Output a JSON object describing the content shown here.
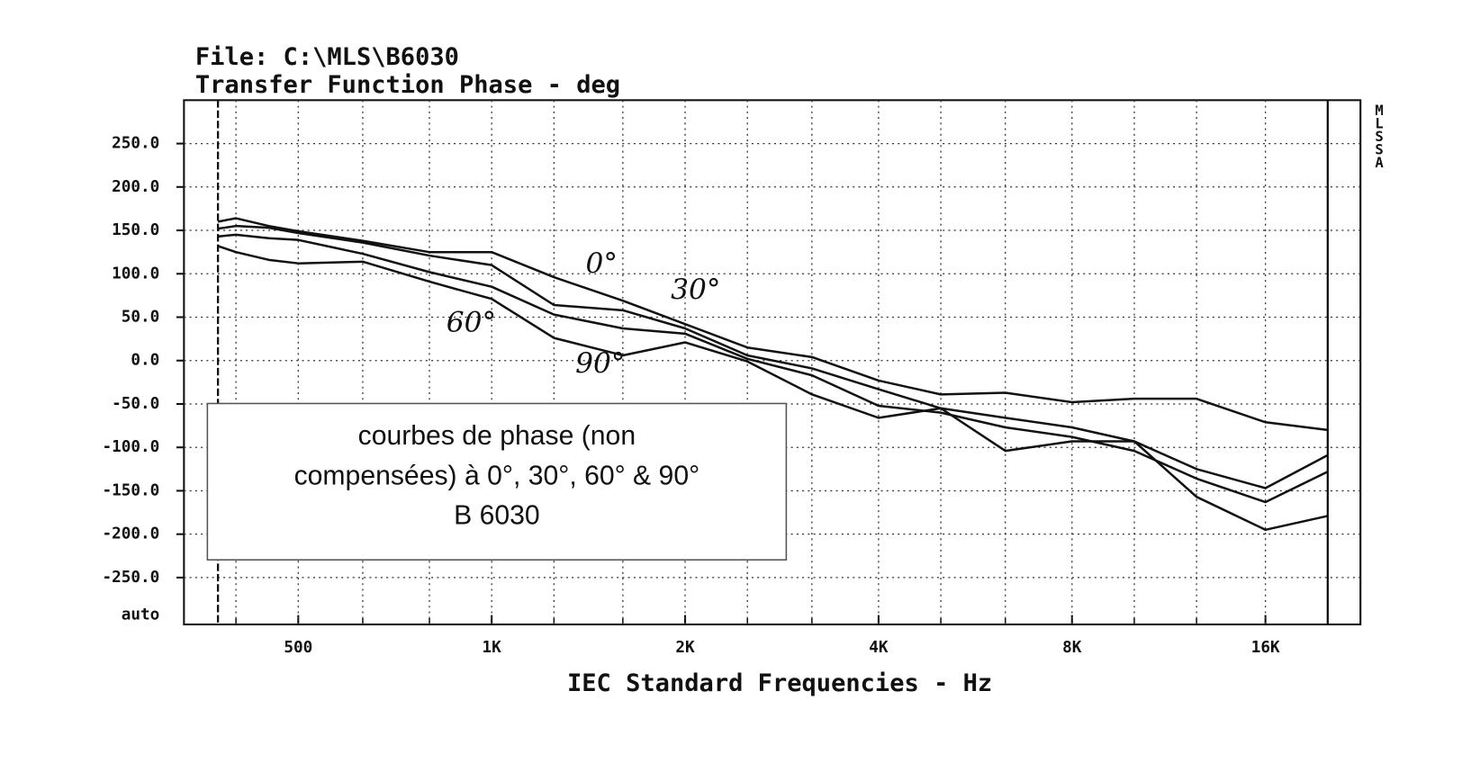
{
  "chart_data": {
    "type": "line",
    "title": "File: C:\\MLS\\B6030",
    "subtitle": "Transfer Function Phase - deg",
    "x_label": "IEC Standard Frequencies - Hz",
    "side_label": "MLSSA",
    "y_auto_label": "auto",
    "log_x": true,
    "grid": true,
    "xlim": [
      332,
      22490
    ],
    "ylim": [
      -304,
      300
    ],
    "xticks": [
      {
        "value": 500,
        "label": "500"
      },
      {
        "value": 1000,
        "label": "1K"
      },
      {
        "value": 2000,
        "label": "2K"
      },
      {
        "value": 4000,
        "label": "4K"
      },
      {
        "value": 8000,
        "label": "8K"
      },
      {
        "value": 16000,
        "label": "16K"
      }
    ],
    "xgrid": [
      400,
      630,
      800,
      1250,
      1600,
      2500,
      3150,
      5000,
      6300,
      10000,
      12500
    ],
    "markers": [
      375,
      20000
    ],
    "yticks": [
      {
        "value": 250,
        "label": "250.0"
      },
      {
        "value": 200,
        "label": "200.0"
      },
      {
        "value": 150,
        "label": "150.0"
      },
      {
        "value": 100,
        "label": "100.0"
      },
      {
        "value": 50,
        "label": "50.0"
      },
      {
        "value": 0,
        "label": "0.0"
      },
      {
        "value": -50,
        "label": "-50.0"
      },
      {
        "value": -100,
        "label": "-100.0"
      },
      {
        "value": -150,
        "label": "-150.0"
      },
      {
        "value": -200,
        "label": "-200.0"
      },
      {
        "value": -250,
        "label": "-250.0"
      }
    ],
    "x": [
      375,
      400,
      450,
      500,
      630,
      800,
      1000,
      1250,
      1600,
      2000,
      2500,
      3150,
      4000,
      5000,
      6300,
      8000,
      10000,
      12500,
      16000,
      20000
    ],
    "series": [
      {
        "name": "0°",
        "color": "#111111",
        "values": [
          160,
          164,
          155,
          149,
          138,
          125,
          125,
          96,
          69,
          42,
          15,
          4,
          -23,
          -39,
          -37,
          -48,
          -44,
          -44,
          -71,
          -80
        ]
      },
      {
        "name": "30°",
        "color": "#111111",
        "values": [
          152,
          155,
          153,
          147,
          136,
          121,
          110,
          64,
          58,
          37,
          6,
          -9,
          -33,
          -55,
          -66,
          -77,
          -93,
          -125,
          -147,
          -109
        ]
      },
      {
        "name": "60°",
        "color": "#111111",
        "values": [
          143,
          145,
          141,
          139,
          123,
          102,
          85,
          53,
          37,
          31,
          2,
          -17,
          -52,
          -60,
          -77,
          -88,
          -104,
          -136,
          -163,
          -128
        ]
      },
      {
        "name": "90°",
        "color": "#111111",
        "values": [
          132,
          125,
          116,
          112,
          114,
          91,
          71,
          26,
          6,
          21,
          -1,
          -39,
          -66,
          -55,
          -104,
          -93,
          -93,
          -157,
          -195,
          -179
        ]
      }
    ],
    "series_label_at": [
      [
        1400,
        110
      ],
      [
        1900,
        80
      ],
      [
        850,
        42
      ],
      [
        1350,
        -5
      ]
    ],
    "annotation": [
      "courbes de phase (non",
      "compensées) à 0°, 30°, 60° & 90°",
      "B 6030"
    ]
  }
}
